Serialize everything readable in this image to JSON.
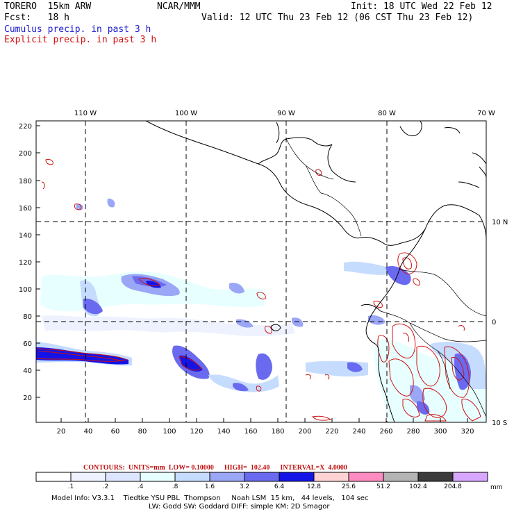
{
  "header": {
    "model": "TORERO  15km ARW",
    "center": "NCAR/MMM",
    "init": "Init: 18 UTC Wed 22 Feb 12",
    "fcst": "Fcst:   18 h",
    "valid": "Valid: 12 UTC Thu 23 Feb 12 (06 CST Thu 23 Feb 12)",
    "cumulus_label": "Cumulus precip. in past 3 h",
    "explicit_label": "Explicit precip. in past 3 h"
  },
  "map": {
    "lon_labels": [
      "110 W",
      "100 W",
      "90 W",
      "80 W",
      "70 W"
    ],
    "lat_labels": [
      "10 N",
      "0",
      "10 S"
    ],
    "y_ticks": [
      "220",
      "200",
      "180",
      "160",
      "140",
      "120",
      "100",
      "80",
      "60",
      "40",
      "20"
    ],
    "x_ticks": [
      "20",
      "40",
      "60",
      "80",
      "100",
      "120",
      "140",
      "160",
      "180",
      "200",
      "220",
      "240",
      "260",
      "280",
      "300",
      "320"
    ]
  },
  "contours_info": "CONTOURS:  UNITS=mm  LOW= 0.10000      HIGH=  102.40      INTERVAL=X  4.0000",
  "legend": {
    "labels": [
      ".1",
      ".2",
      ".4",
      ".8",
      "1.6",
      "3.2",
      "6.4",
      "12.8",
      "25.6",
      "51.2",
      "102.4",
      "204.8"
    ],
    "units": "mm",
    "colors": [
      "#ffffff",
      "#eef2ff",
      "#dde6ff",
      "#e8ffff",
      "#c6dcff",
      "#9aa6f6",
      "#6a6af0",
      "#1414e6",
      "#ffd3d3",
      "#ff8cc0",
      "#b4b4b4",
      "#3c3c3c",
      "#d7a6ff"
    ]
  },
  "footer": {
    "line1": "Model Info: V3.3.1    Tiedtke YSU PBL  Thompson     Noah LSM  15 km,   44 levels,   104 sec",
    "line2": "LW: Godd SW: Goddard DIFF: simple KM: 2D Smagor"
  }
}
